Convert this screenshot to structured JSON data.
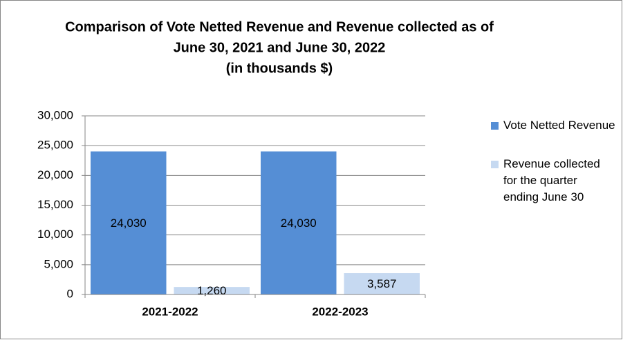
{
  "chart_data": {
    "type": "bar",
    "title": [
      "Comparison of Vote Netted Revenue and Revenue collected as of",
      "June 30, 2021 and June 30, 2022",
      "(in thousands $)"
    ],
    "categories": [
      "2021-2022",
      "2022-2023"
    ],
    "series": [
      {
        "name": "Vote Netted Revenue",
        "color": "#558ed5",
        "values": [
          24030,
          24030
        ],
        "value_labels": [
          "24,030",
          "24,030"
        ]
      },
      {
        "name": "Revenue collected for the quarter ending June 30",
        "color": "#c6d9f1",
        "values": [
          1260,
          3587
        ],
        "value_labels": [
          "1,260",
          "3,587"
        ]
      }
    ],
    "ylim": [
      0,
      30000
    ],
    "yticks": [
      0,
      {
        "value": 5000,
        "label": "5,000"
      },
      {
        "value": 10000,
        "label": "10,000"
      },
      {
        "value": 15000,
        "label": "15,000"
      },
      {
        "value": 20000,
        "label": "20,000"
      },
      {
        "value": 25000,
        "label": "25,000"
      },
      {
        "value": 30000,
        "label": "30,000"
      }
    ],
    "grid": true,
    "legend": "right"
  }
}
